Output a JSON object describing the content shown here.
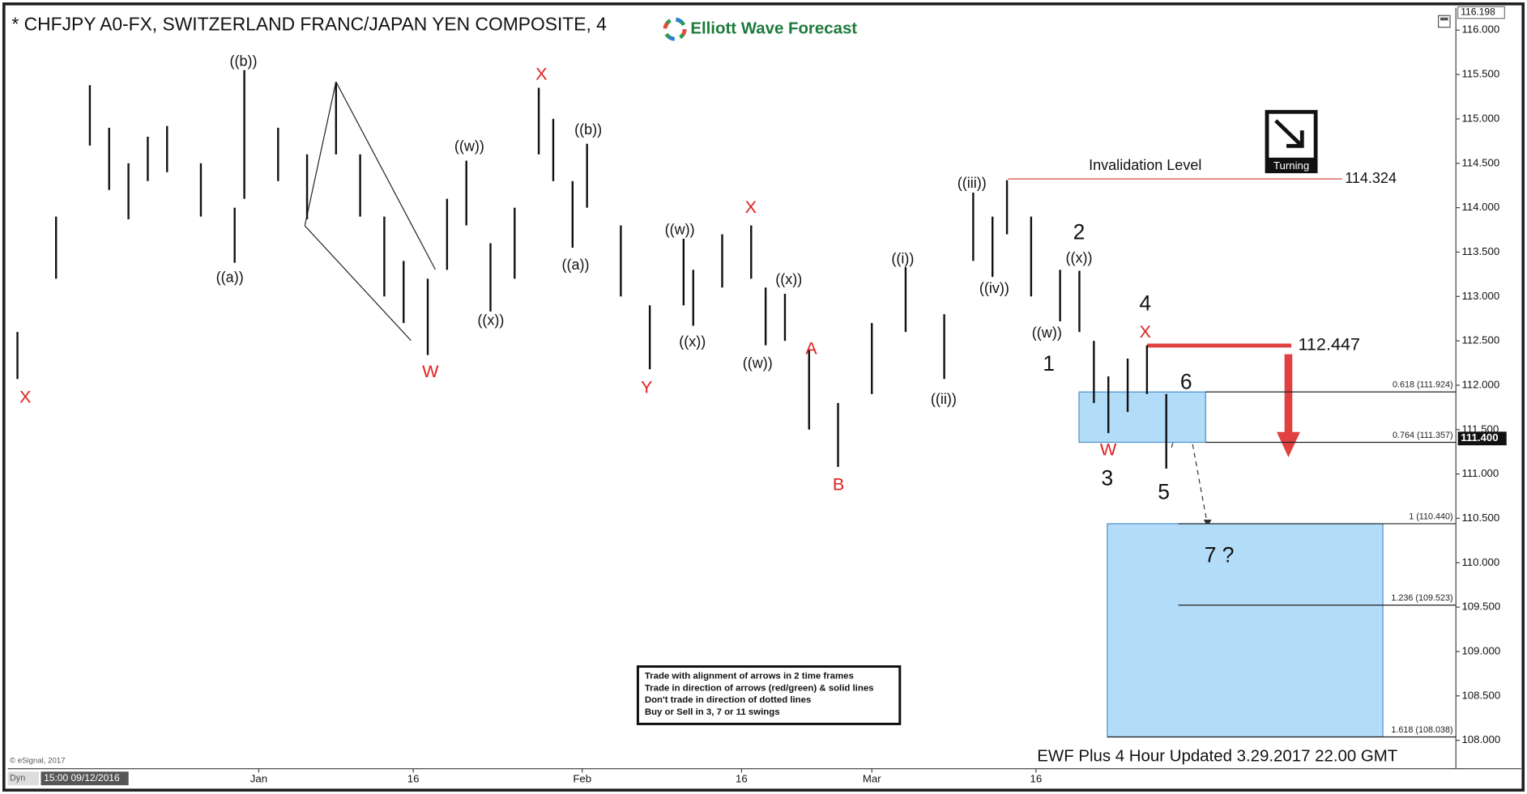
{
  "chart_data": {
    "type": "ohlc",
    "title": "* CHFJPY A0-FX, SWITZERLAND FRANC/JAPAN YEN COMPOSITE, 4",
    "brand": "Elliott Wave Forecast",
    "bar_color": "#111111",
    "x": [
      2,
      10,
      17,
      21,
      25,
      29,
      33,
      40,
      47,
      49,
      56,
      62,
      68,
      73,
      78,
      82,
      87,
      91,
      95,
      100,
      105,
      110,
      113,
      117,
      120,
      127,
      133,
      140,
      142,
      148,
      154,
      157,
      161,
      166,
      172,
      179,
      186,
      194,
      200,
      204,
      207,
      212,
      218,
      222,
      225,
      228,
      232,
      236,
      240
    ],
    "low": [
      112.07,
      113.2,
      114.7,
      114.2,
      113.87,
      114.3,
      114.4,
      113.9,
      113.38,
      114.1,
      114.3,
      113.87,
      114.6,
      113.9,
      113.0,
      112.7,
      112.34,
      113.3,
      113.8,
      112.83,
      113.2,
      114.6,
      114.3,
      113.55,
      114.0,
      113.0,
      112.18,
      112.9,
      112.67,
      113.1,
      113.2,
      112.45,
      112.5,
      111.5,
      111.08,
      111.9,
      112.6,
      112.07,
      113.4,
      113.22,
      113.7,
      113.0,
      112.72,
      112.6,
      111.8,
      111.46,
      111.7,
      111.9,
      111.06
    ],
    "high": [
      112.6,
      113.9,
      115.38,
      114.9,
      114.5,
      114.8,
      114.92,
      114.5,
      114.0,
      115.55,
      114.9,
      114.6,
      115.41,
      114.6,
      113.9,
      113.4,
      113.2,
      114.1,
      114.53,
      113.6,
      114.0,
      115.35,
      115.0,
      114.3,
      114.72,
      113.8,
      112.9,
      113.65,
      113.3,
      113.7,
      113.8,
      113.1,
      113.03,
      112.4,
      111.8,
      112.7,
      113.33,
      112.8,
      114.17,
      113.9,
      114.31,
      113.9,
      113.3,
      113.29,
      112.5,
      112.1,
      112.3,
      112.45,
      111.9
    ],
    "xlim": [
      0,
      300
    ],
    "xticks": [
      {
        "value": 52,
        "label": "Jan"
      },
      {
        "value": 84,
        "label": "16"
      },
      {
        "value": 119,
        "label": "Feb"
      },
      {
        "value": 152,
        "label": "16"
      },
      {
        "value": 179,
        "label": "Mar"
      },
      {
        "value": 213,
        "label": "16"
      }
    ],
    "ylim": [
      107.68,
      116.23
    ],
    "yticks": [
      {
        "value": 108,
        "label": "108.000"
      },
      {
        "value": 108.5,
        "label": "108.500"
      },
      {
        "value": 109,
        "label": "109.000"
      },
      {
        "value": 109.5,
        "label": "109.500"
      },
      {
        "value": 110,
        "label": "110.000"
      },
      {
        "value": 110.5,
        "label": "110.500"
      },
      {
        "value": 111,
        "label": "111.000"
      },
      {
        "value": 111.5,
        "label": "111.500"
      },
      {
        "value": 112,
        "label": "112.000"
      },
      {
        "value": 112.5,
        "label": "112.500"
      },
      {
        "value": 113,
        "label": "113.000"
      },
      {
        "value": 113.5,
        "label": "113.500"
      },
      {
        "value": 114,
        "label": "114.000"
      },
      {
        "value": 114.5,
        "label": "114.500"
      },
      {
        "value": 115,
        "label": "115.000"
      },
      {
        "value": 115.5,
        "label": "115.500"
      },
      {
        "value": 116,
        "label": "116.000"
      }
    ],
    "axis_top": {
      "value": 116.198,
      "label": "116.198"
    },
    "last_price": {
      "value": 111.4,
      "label": "111.400"
    },
    "levels": [
      {
        "name": "Invalidation Level",
        "value": 114.324,
        "color": "#d03030"
      },
      {
        "value": 112.447,
        "color": "#e04040"
      }
    ],
    "fib_levels": [
      {
        "value": 111.924,
        "label": "0.618 (111.924)"
      },
      {
        "value": 111.357,
        "label": "0.764 (111.357)"
      },
      {
        "value": 110.44,
        "label": "1 (110.440)"
      },
      {
        "value": 109.523,
        "label": "1.236 (109.523)"
      },
      {
        "value": 108.038,
        "label": "1.618 (108.038)"
      }
    ],
    "zone_color": "#b3dcf8",
    "annotations": [
      {
        "text": "X",
        "color": "#e02020"
      },
      {
        "text": "((b))",
        "color": "#111111"
      },
      {
        "text": "((a))",
        "color": "#111111"
      },
      {
        "text": "X",
        "color": "#e02020"
      },
      {
        "text": "W",
        "color": "#e02020"
      },
      {
        "text": "((w))",
        "color": "#111111"
      },
      {
        "text": "((x))",
        "color": "#111111"
      },
      {
        "text": "((b))",
        "color": "#111111"
      },
      {
        "text": "((a))",
        "color": "#111111"
      },
      {
        "text": "Y",
        "color": "#e02020"
      },
      {
        "text": "((w))",
        "color": "#111111"
      },
      {
        "text": "((x))",
        "color": "#111111"
      },
      {
        "text": "X",
        "color": "#e02020"
      },
      {
        "text": "((x))",
        "color": "#111111"
      },
      {
        "text": "((w))",
        "color": "#111111"
      },
      {
        "text": "A",
        "color": "#e02020"
      },
      {
        "text": "B",
        "color": "#e02020"
      },
      {
        "text": "((i))",
        "color": "#111111"
      },
      {
        "text": "((ii))",
        "color": "#111111"
      },
      {
        "text": "((iii))",
        "color": "#111111"
      },
      {
        "text": "((iv))",
        "color": "#111111"
      },
      {
        "text": "2",
        "color": "#111111"
      },
      {
        "text": "((x))",
        "color": "#111111"
      },
      {
        "text": "((w))",
        "color": "#111111"
      },
      {
        "text": "1",
        "color": "#111111"
      },
      {
        "text": "4",
        "color": "#111111"
      },
      {
        "text": "X",
        "color": "#e02020"
      },
      {
        "text": "6",
        "color": "#111111"
      },
      {
        "text": "W",
        "color": "#e02020"
      },
      {
        "text": "3",
        "color": "#111111"
      },
      {
        "text": "5",
        "color": "#111111"
      },
      {
        "text": "7 ?",
        "color": "#111111"
      }
    ],
    "turning_label": "Turning",
    "rules": [
      "Trade with alignment of arrows in 2 time frames",
      "Trade in direction of arrows (red/green) & solid lines",
      "Don't trade in direction of dotted lines",
      "Buy or Sell in 3, 7 or 11 swings"
    ],
    "footer": "EWF Plus 4 Hour Updated 3.29.2017 22.00 GMT",
    "copyright": "© eSignal, 2017",
    "cursor_time": "15:00 09/12/2016",
    "dyn": "Dyn"
  }
}
